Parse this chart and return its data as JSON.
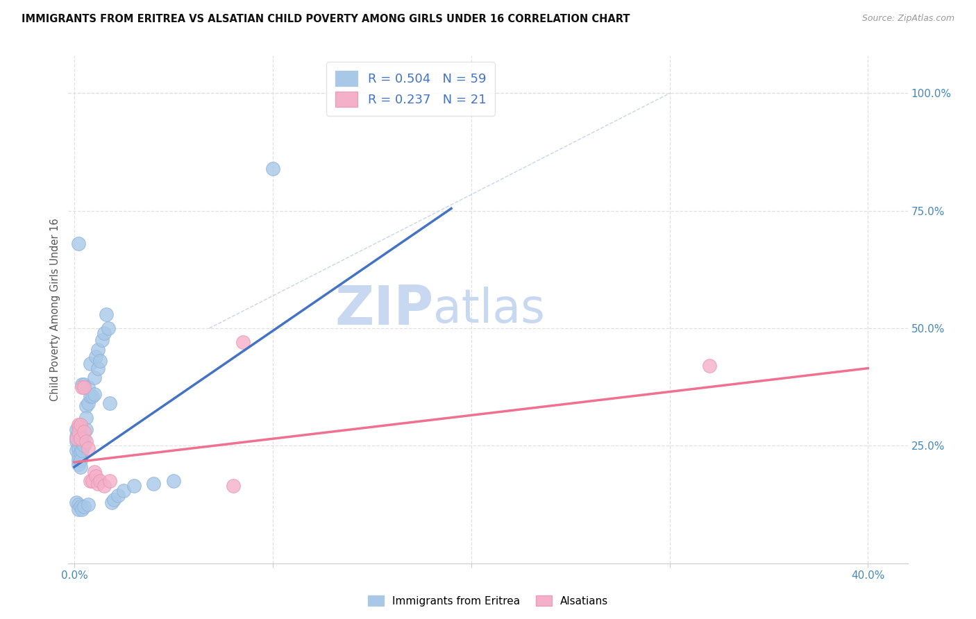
{
  "title": "IMMIGRANTS FROM ERITREA VS ALSATIAN CHILD POVERTY AMONG GIRLS UNDER 16 CORRELATION CHART",
  "source": "Source: ZipAtlas.com",
  "ylabel": "Child Poverty Among Girls Under 16",
  "xlim": [
    -0.003,
    0.42
  ],
  "ylim": [
    0.0,
    1.08
  ],
  "watermark_zip": "ZIP",
  "watermark_atlas": "atlas",
  "legend_r1": "R = 0.504   N = 59",
  "legend_r2": "R = 0.237   N = 21",
  "legend_label1": "Immigrants from Eritrea",
  "legend_label2": "Alsatians",
  "blue_scatter_x": [
    0.001,
    0.001,
    0.001,
    0.001,
    0.002,
    0.002,
    0.002,
    0.002,
    0.002,
    0.002,
    0.002,
    0.003,
    0.003,
    0.003,
    0.003,
    0.003,
    0.003,
    0.004,
    0.004,
    0.004,
    0.004,
    0.005,
    0.005,
    0.005,
    0.006,
    0.006,
    0.006,
    0.007,
    0.007,
    0.008,
    0.008,
    0.009,
    0.01,
    0.01,
    0.011,
    0.012,
    0.012,
    0.013,
    0.014,
    0.015,
    0.016,
    0.017,
    0.018,
    0.019,
    0.02,
    0.022,
    0.025,
    0.03,
    0.04,
    0.05,
    0.001,
    0.002,
    0.002,
    0.003,
    0.004,
    0.005,
    0.007,
    0.1,
    0.002
  ],
  "blue_scatter_y": [
    0.285,
    0.27,
    0.26,
    0.24,
    0.29,
    0.275,
    0.26,
    0.245,
    0.23,
    0.22,
    0.21,
    0.28,
    0.265,
    0.25,
    0.235,
    0.22,
    0.205,
    0.27,
    0.255,
    0.24,
    0.38,
    0.265,
    0.25,
    0.38,
    0.335,
    0.31,
    0.285,
    0.34,
    0.375,
    0.355,
    0.425,
    0.355,
    0.36,
    0.395,
    0.44,
    0.415,
    0.455,
    0.43,
    0.475,
    0.49,
    0.53,
    0.5,
    0.34,
    0.13,
    0.135,
    0.145,
    0.155,
    0.165,
    0.17,
    0.175,
    0.13,
    0.125,
    0.115,
    0.12,
    0.115,
    0.12,
    0.125,
    0.84,
    0.68
  ],
  "pink_scatter_x": [
    0.001,
    0.002,
    0.002,
    0.003,
    0.003,
    0.004,
    0.005,
    0.005,
    0.006,
    0.007,
    0.008,
    0.009,
    0.01,
    0.011,
    0.012,
    0.013,
    0.015,
    0.018,
    0.08,
    0.085,
    0.32
  ],
  "pink_scatter_y": [
    0.265,
    0.295,
    0.28,
    0.265,
    0.295,
    0.375,
    0.375,
    0.28,
    0.26,
    0.245,
    0.175,
    0.175,
    0.195,
    0.185,
    0.17,
    0.175,
    0.165,
    0.175,
    0.165,
    0.47,
    0.42
  ],
  "blue_line_x0": 0.0,
  "blue_line_y0": 0.205,
  "blue_line_x1": 0.19,
  "blue_line_y1": 0.755,
  "pink_line_x0": 0.0,
  "pink_line_y0": 0.215,
  "pink_line_x1": 0.4,
  "pink_line_y1": 0.415,
  "dash_line_x0": 0.068,
  "dash_line_y0": 0.5,
  "dash_line_x1": 0.3,
  "dash_line_y1": 1.0,
  "blue_scatter_color": "#A8C8E8",
  "blue_scatter_edge": "#90B4DC",
  "pink_scatter_color": "#F4B0C8",
  "pink_scatter_edge": "#E898B4",
  "blue_line_color": "#4472C4",
  "pink_line_color": "#F07090",
  "grid_color": "#E0E0E0",
  "bg_color": "#FFFFFF",
  "title_color": "#111111",
  "title_fontsize": 10.5,
  "axis_label_fontsize": 10.5,
  "tick_fontsize": 11,
  "tick_color": "#4488BB",
  "watermark_color": "#C8D8F0",
  "watermark_fontsize_zip": 56,
  "watermark_fontsize_atlas": 48,
  "right_yticks": [
    0.25,
    0.5,
    0.75,
    1.0
  ],
  "right_yticklabels": [
    "25.0%",
    "50.0%",
    "75.0%",
    "100.0%"
  ],
  "xtick_positions": [
    0.0,
    0.1,
    0.2,
    0.3,
    0.4
  ],
  "xtick_labels": [
    "0.0%",
    "",
    "",
    "",
    "40.0%"
  ]
}
